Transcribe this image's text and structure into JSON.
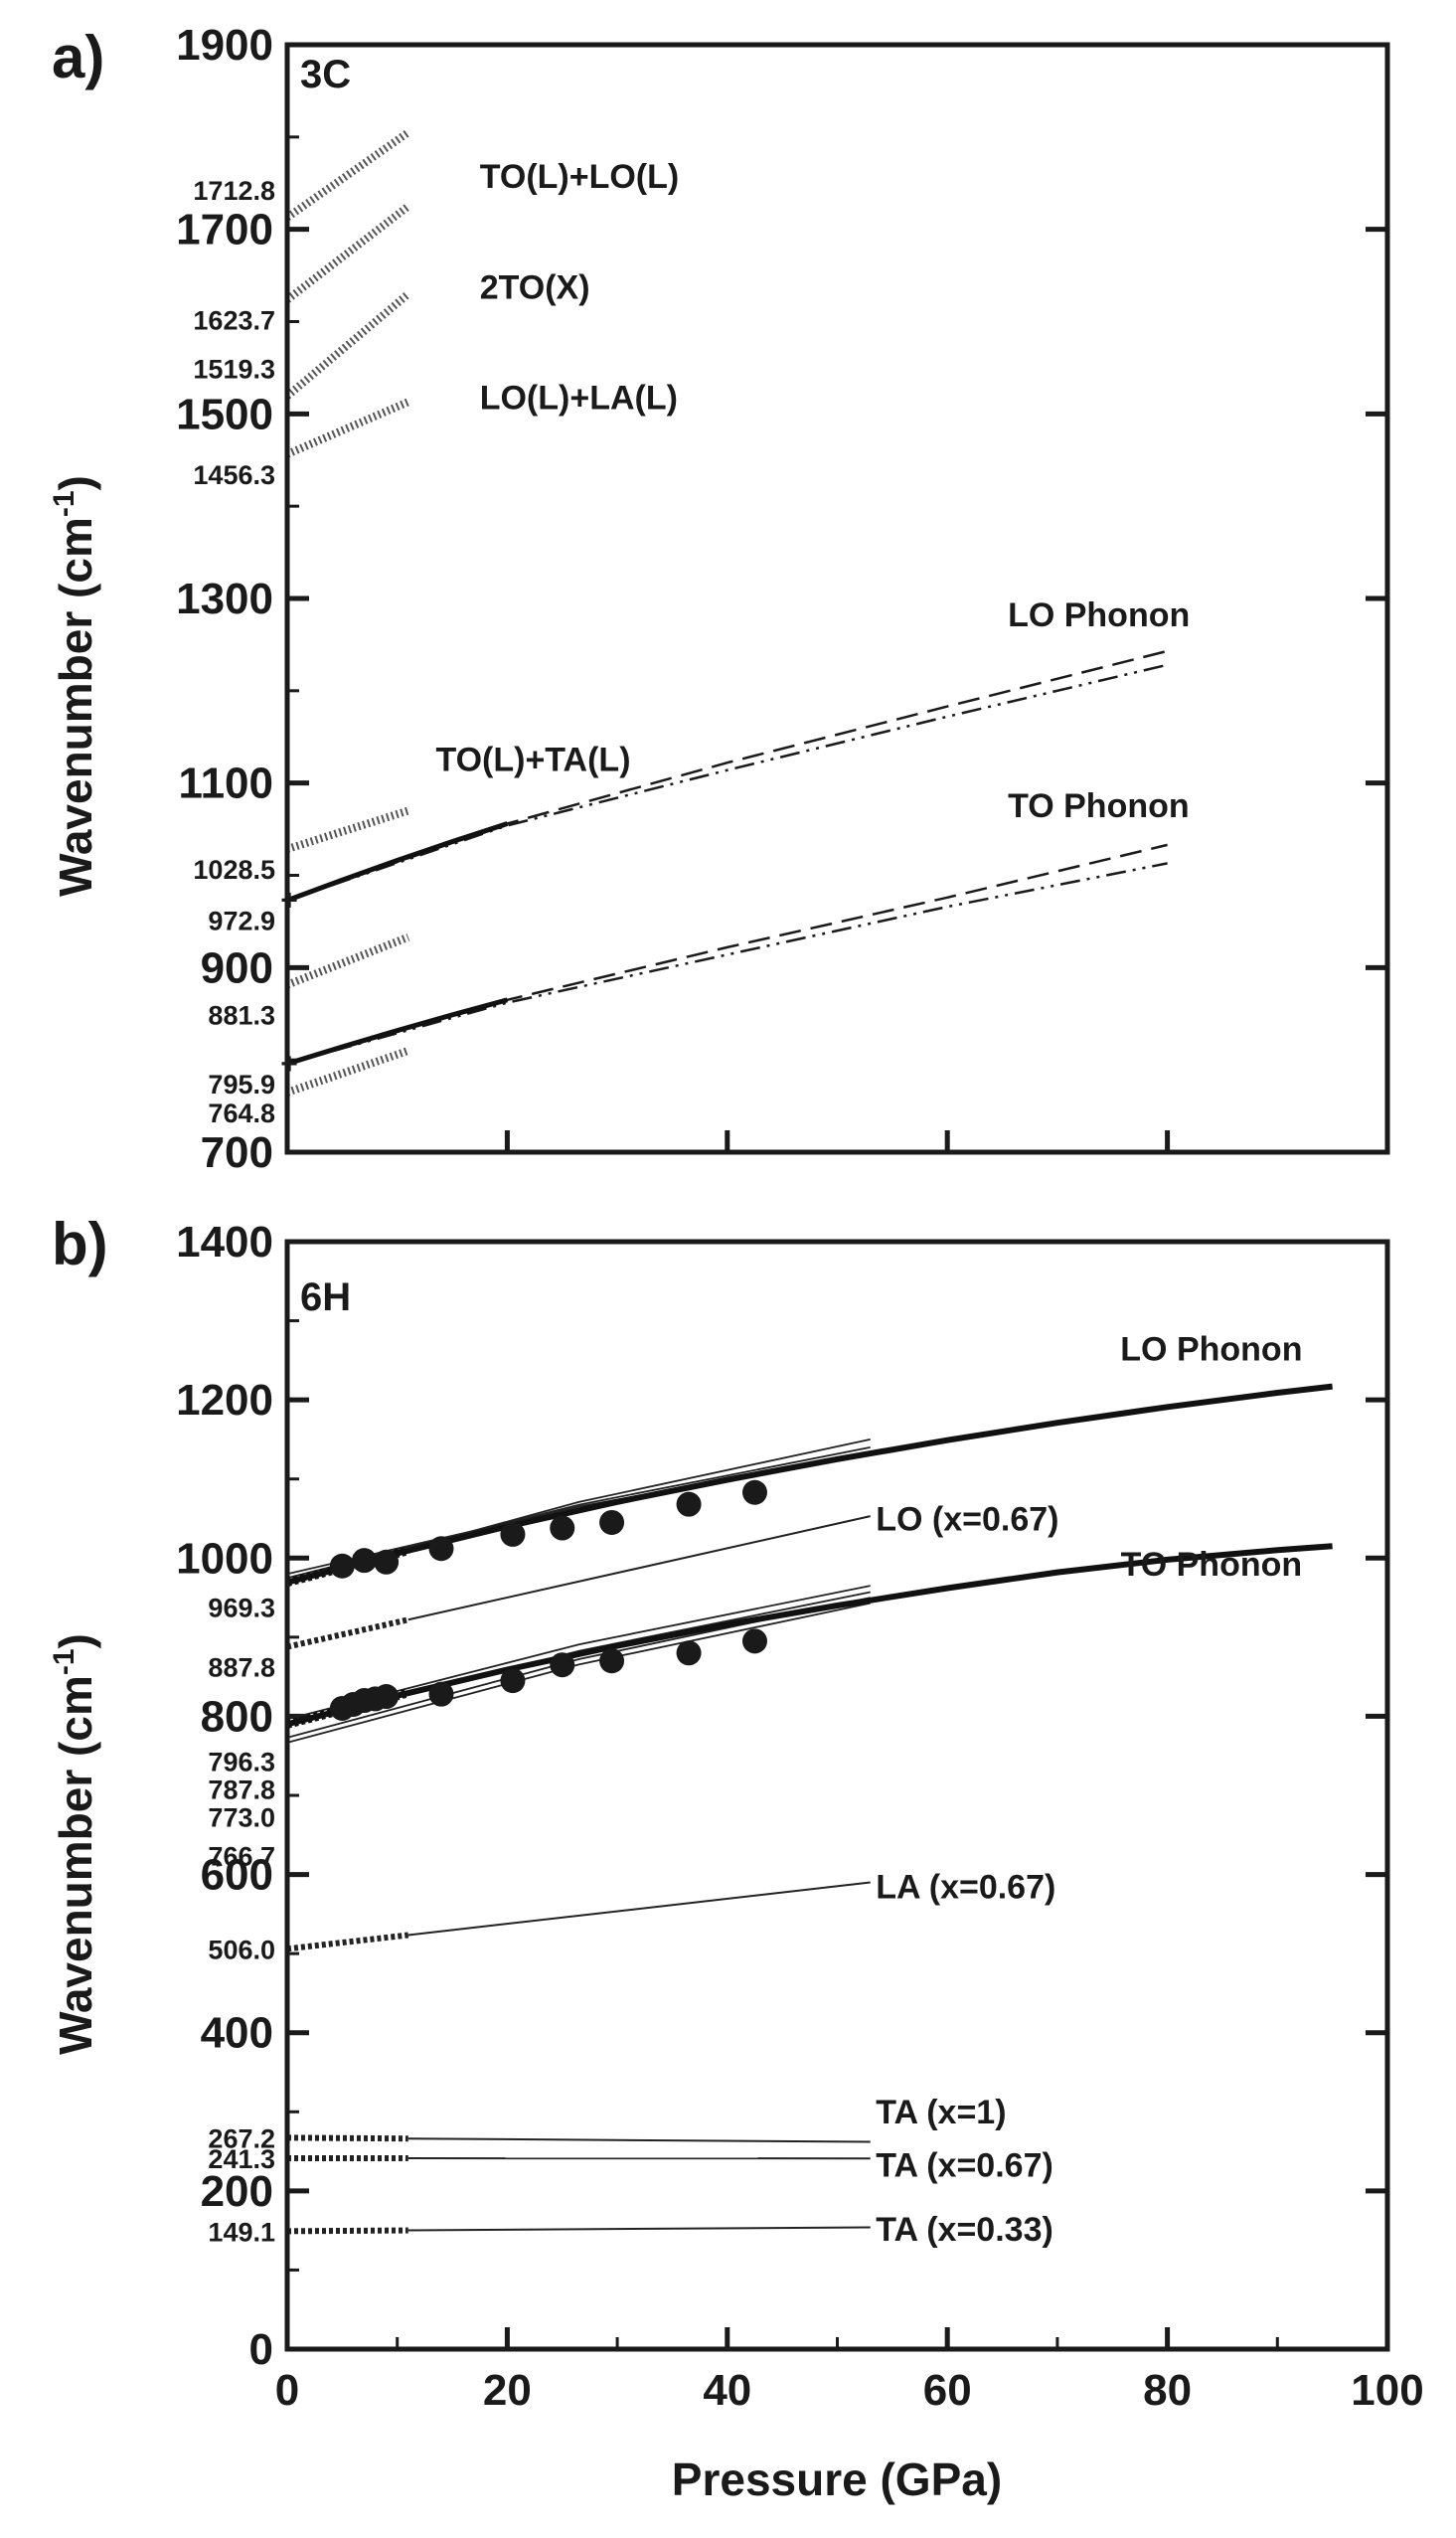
{
  "figure": {
    "xlabel": "Pressure (GPa)"
  },
  "chart_data": [
    {
      "type": "line",
      "panel_letter": "a)",
      "polytype": "3C",
      "ylabel_base": "Wavenumber (cm",
      "ylabel_exp": "-1",
      "ylabel_close": ")",
      "xlim": [
        0,
        100
      ],
      "ylim": [
        700,
        1900
      ],
      "yticks": [
        700,
        900,
        1100,
        1300,
        1500,
        1700,
        1900
      ],
      "phonon_series": [
        {
          "name": "LO Phonon",
          "style": "dashed",
          "x": [
            0,
            20,
            40,
            60,
            80
          ],
          "y": [
            972.9,
            1056,
            1122,
            1183,
            1243
          ]
        },
        {
          "name": "LO Phonon",
          "style": "dashdotdot",
          "x": [
            0,
            20,
            40,
            60,
            80
          ],
          "y": [
            972.9,
            1054,
            1114,
            1172,
            1228
          ]
        },
        {
          "name": "TO Phonon",
          "style": "dashed",
          "x": [
            0,
            20,
            40,
            60,
            80
          ],
          "y": [
            795.9,
            865,
            922,
            976,
            1033
          ]
        },
        {
          "name": "TO Phonon",
          "style": "dashdotdot",
          "x": [
            0,
            20,
            40,
            60,
            80
          ],
          "y": [
            795.9,
            862,
            914,
            966,
            1013
          ]
        }
      ],
      "combination_modes": [
        {
          "name": "",
          "y0": 1712.8,
          "x_end": 11,
          "y_end": 1805
        },
        {
          "name": "TO(L)+LO(L)",
          "y0": 1623.7,
          "x_end": 11,
          "y_end": 1725
        },
        {
          "name": "2TO(X)",
          "y0": 1519.3,
          "x_end": 11,
          "y_end": 1630
        },
        {
          "name": "LO(L)+LA(L)",
          "y0": 1456.3,
          "x_end": 11,
          "y_end": 1513
        },
        {
          "name": "TO(L)+TA(L)",
          "y0": 1028.5,
          "x_end": 11,
          "y_end": 1070
        },
        {
          "name": "",
          "y0": 881.3,
          "x_end": 11,
          "y_end": 933
        },
        {
          "name": "",
          "y0": 764.8,
          "x_end": 11,
          "y_end": 810
        }
      ],
      "value_annotations": [
        "1712.8",
        "1623.7",
        "1519.3",
        "1456.3",
        "1028.5",
        "972.9",
        "881.3",
        "795.9",
        "764.8"
      ],
      "curve_labels": [
        "TO(L)+LO(L)",
        "2TO(X)",
        "LO(L)+LA(L)",
        "TO(L)+TA(L)",
        "LO Phonon",
        "TO Phonon"
      ]
    },
    {
      "type": "line",
      "panel_letter": "b)",
      "polytype": "6H",
      "ylabel_base": "Wavenumber (cm",
      "ylabel_exp": "-1",
      "ylabel_close": ")",
      "xlim": [
        0,
        100
      ],
      "ylim": [
        0,
        1400
      ],
      "xticks": [
        0,
        20,
        40,
        60,
        80,
        100
      ],
      "yticks": [
        0,
        200,
        400,
        600,
        800,
        1000,
        1200,
        1400
      ],
      "phonon_series": [
        {
          "name": "LO Phonon",
          "x": [
            0,
            10,
            20,
            30,
            40,
            50,
            60,
            70,
            80,
            90,
            95
          ],
          "y": [
            969.3,
            1006,
            1040,
            1071,
            1099,
            1125,
            1149,
            1171,
            1191,
            1209,
            1217
          ]
        },
        {
          "name": "TO Phonon",
          "x": [
            0,
            10,
            20,
            30,
            40,
            50,
            60,
            70,
            80,
            90,
            95
          ],
          "y": [
            790,
            826,
            859,
            889,
            916,
            940,
            962,
            982,
            998,
            1010,
            1015
          ]
        }
      ],
      "mode_lines": [
        {
          "name": "LO (x=0.67)",
          "y0": 887.8,
          "y_end": 1053
        },
        {
          "name": "LA (x=0.67)",
          "y0": 506.0,
          "y_end": 590
        },
        {
          "name": "TA (x=1)",
          "y0": 267.2,
          "y_end": 262
        },
        {
          "name": "TA (x=0.67)",
          "y0": 241.3,
          "y_end": 241
        },
        {
          "name": "TA (x=0.33)",
          "y0": 149.1,
          "y_end": 154
        }
      ],
      "fan_lines_upper": [
        {
          "y0": 970,
          "y_end": 1150
        },
        {
          "y0": 975,
          "y_end": 1140
        },
        {
          "y0": 980,
          "y_end": 1132
        }
      ],
      "fan_lines_lower": [
        {
          "y0": 796.3,
          "y_end": 965
        },
        {
          "y0": 787.8,
          "y_end": 957
        },
        {
          "y0": 773.0,
          "y_end": 950
        },
        {
          "y0": 766.7,
          "y_end": 943
        }
      ],
      "fan_end_x": 53,
      "mode_end_x": 53,
      "dotted_segment_end_x": 11,
      "measured_points": {
        "upper": {
          "x": [
            5,
            7,
            9,
            14,
            20.5,
            25,
            29.5,
            36.5,
            42.5
          ],
          "y": [
            990,
            997,
            995,
            1012,
            1030,
            1038,
            1045,
            1068,
            1083
          ]
        },
        "lower": {
          "x": [
            5,
            6,
            7,
            8,
            9,
            14,
            20.5,
            25,
            29.5,
            36.5,
            42.5
          ],
          "y": [
            810,
            815,
            820,
            822,
            825,
            828,
            845,
            865,
            870,
            880,
            895
          ]
        }
      },
      "value_annotations": [
        "969.3",
        "887.8",
        "796.3",
        "787.8",
        "773.0",
        "766.7",
        "506.0",
        "267.2",
        "241.3",
        "149.1"
      ],
      "curve_labels": [
        "LO Phonon",
        "LO (x=0.67)",
        "TO Phonon",
        "LA (x=0.67)",
        "TA (x=1)",
        "TA (x=0.67)",
        "TA (x=0.33)"
      ]
    }
  ]
}
